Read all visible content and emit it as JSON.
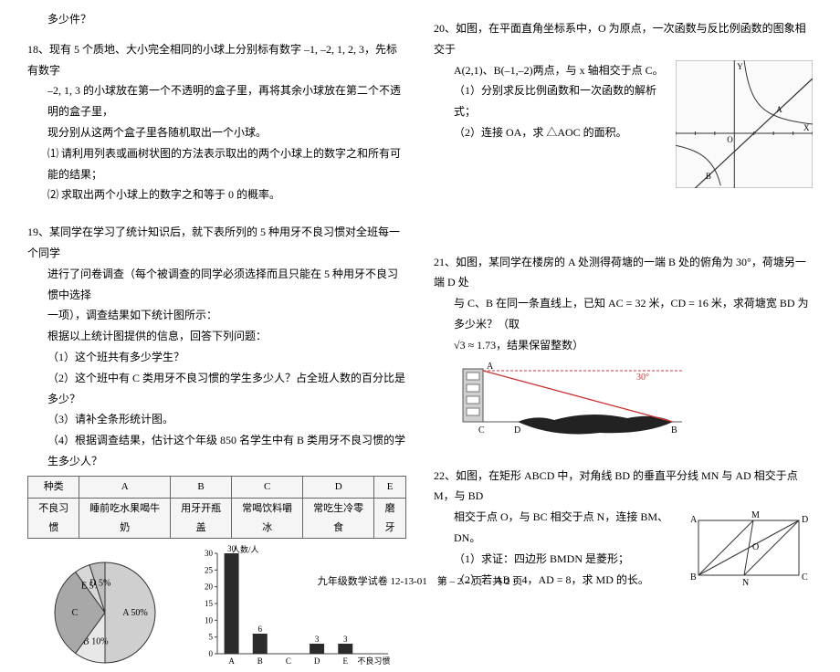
{
  "footer": "九年级数学试卷 12-13-01　第 – 2 – 页　共 2 页",
  "q17tail": "多少件？",
  "q18": {
    "num": "18、",
    "line1": "现有 5 个质地、大小完全相同的小球上分别标有数字 –1, –2, 1, 2, 3，先标有数字",
    "line2": "–2, 1, 3 的小球放在第一个不透明的盒子里，再将其余小球放在第二个不透明的盒子里，",
    "line3": "现分别从这两个盒子里各随机取出一个小球。",
    "s1": "⑴ 请利用列表或画树状图的方法表示取出的两个小球上的数字之和所有可能的结果；",
    "s2": "⑵ 求取出两个小球上的数字之和等于 0 的概率。"
  },
  "q19": {
    "num": "19、",
    "line1": "某同学在学习了统计知识后，就下表所列的 5 种用牙不良习惯对全班每一个同学",
    "line2": "进行了问卷调查（每个被调查的同学必须选择而且只能在 5 种用牙不良习惯中选择",
    "line3": "一项），调查结果如下统计图所示：",
    "line4": "根据以上统计图提供的信息，回答下列问题：",
    "s1": "（1）这个班共有多少学生？",
    "s2": "（2）这个班中有 C 类用牙不良习惯的学生多少人？占全班人数的百分比是多少？",
    "s3": "（3）请补全条形统计图。",
    "s4": "（4）根据调查结果，估计这个年级 850 名学生中有 B 类用牙不良习惯的学生多少人？",
    "table": {
      "head": [
        "种类",
        "A",
        "B",
        "C",
        "D",
        "E"
      ],
      "row": [
        "不良习惯",
        "睡前吃水果喝牛奶",
        "用牙开瓶盖",
        "常喝饮料嚼冰",
        "常吃生冷零食",
        "磨牙"
      ]
    },
    "pie": {
      "labels": [
        "A 50%",
        "B 10%",
        "C",
        "E 5%",
        "D 5%"
      ],
      "values": [
        50,
        10,
        30,
        5,
        5
      ],
      "colors": [
        "#cfcfcf",
        "#e8e8e8",
        "#a8a8a8",
        "#d8d8d8",
        "#bfbfbf"
      ],
      "stroke": "#333"
    },
    "bar": {
      "ylabel": "人数/人",
      "ymax": 30,
      "ystep": 5,
      "categories": [
        "A",
        "B",
        "C",
        "D",
        "E",
        "不良习惯"
      ],
      "values": [
        30,
        6,
        null,
        3,
        3,
        null
      ],
      "bar_color": "#2b2b2b",
      "axis_color": "#444"
    }
  },
  "q20": {
    "num": "20、",
    "line1": "如图，在平面直角坐标系中，O 为原点，一次函数与反比例函数的图象相交于",
    "line2": "A(2,1)、B(–1,–2)两点，与 x 轴相交于点 C。",
    "s1": "（1）分别求反比例函数和一次函数的解析式；",
    "s2": "（2）连接 OA，求 △AOC 的面积。",
    "graph": {
      "xmin": -3,
      "xmax": 4,
      "ymin": -3,
      "ymax": 4,
      "line": {
        "slope": 1,
        "intercept": -1,
        "color": "#333"
      },
      "hyperbola_color": "#333",
      "axis_color": "#333",
      "ylabel_top": "Y",
      "xlabel_right": "X",
      "pointA": "A",
      "pointB": "B"
    }
  },
  "q21": {
    "num": "21、",
    "line1": "如图，某同学在楼房的 A 处测得荷塘的一端 B 处的俯角为 30°，荷塘另一端 D 处",
    "line2": "与 C、B 在同一条直线上，已知 AC = 32 米，CD = 16 米，求荷塘宽 BD 为多少米？（取",
    "line3": "√3 ≈ 1.73，结果保留整数）",
    "fig": {
      "angle_label": "30°",
      "A": "A",
      "B": "B",
      "C": "C",
      "D": "D",
      "building_color": "#d0d0d0",
      "pond_color": "#222",
      "line_color": "#c33"
    }
  },
  "q22": {
    "num": "22、",
    "line1": "如图，在矩形 ABCD 中，对角线 BD 的垂直平分线 MN 与 AD 相交于点 M，与 BD",
    "line2": "相交于点 O，与 BC 相交于点 N，连接 BM、DN。",
    "s1": "（1）求证：四边形 BMDN 是菱形；",
    "s2": "（2）若 AB = 4，AD = 8，求 MD 的长。",
    "fig": {
      "labels": [
        "A",
        "B",
        "C",
        "D",
        "M",
        "N",
        "O"
      ],
      "stroke": "#333"
    }
  }
}
